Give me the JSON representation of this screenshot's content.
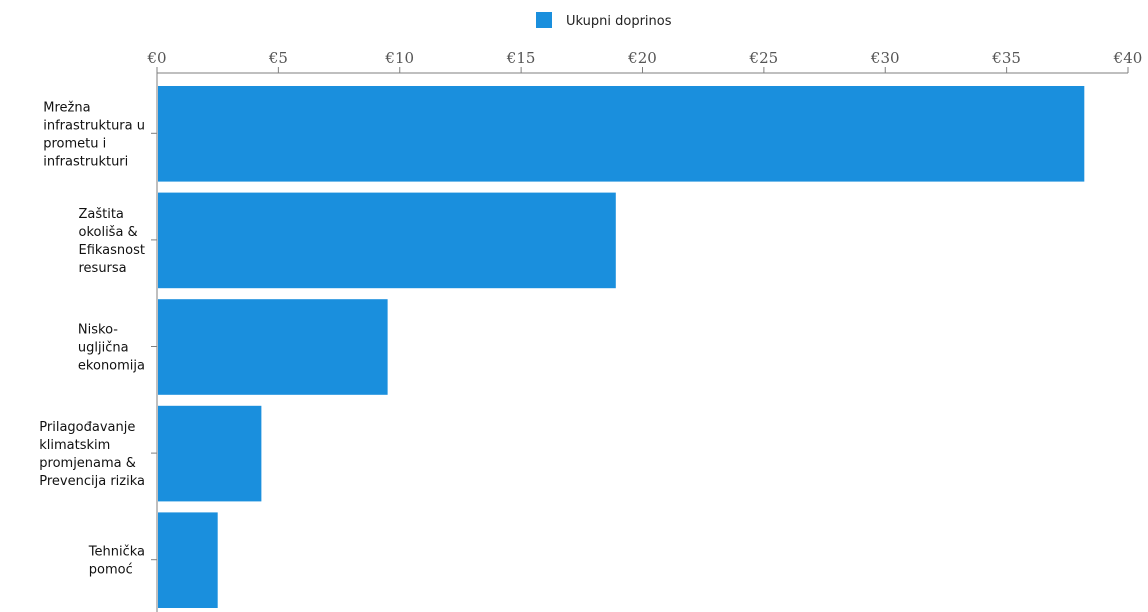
{
  "chart_data": {
    "type": "bar",
    "orientation": "horizontal",
    "title": "",
    "xlabel": "",
    "ylabel": "",
    "legend": {
      "position": "top-center",
      "entries": [
        "Ukupni doprinos"
      ]
    },
    "categories": [
      [
        "Mrežna",
        "infrastruktura u",
        "prometu i",
        "infrastrukturi"
      ],
      [
        "Zaštita",
        "okoliša &",
        "Efikasnost",
        "resursa"
      ],
      [
        "Nisko-",
        "ugljična",
        "ekonomija"
      ],
      [
        "Prilagođavanje",
        "klimatskim",
        "promjenama &",
        "Prevencija rizika"
      ],
      [
        "Tehnička",
        "pomoć"
      ]
    ],
    "series": [
      {
        "name": "Ukupni doprinos",
        "color": "#1a8fdd",
        "values": [
          38.2,
          18.9,
          9.5,
          4.3,
          2.5
        ]
      }
    ],
    "xlim": [
      0,
      40
    ],
    "xticks": [
      0,
      5,
      10,
      15,
      20,
      25,
      30,
      35,
      40
    ],
    "xtick_labels": [
      "€0",
      "€5",
      "€10",
      "€15",
      "€20",
      "€25",
      "€30",
      "€35",
      "€40"
    ],
    "grid": false
  }
}
